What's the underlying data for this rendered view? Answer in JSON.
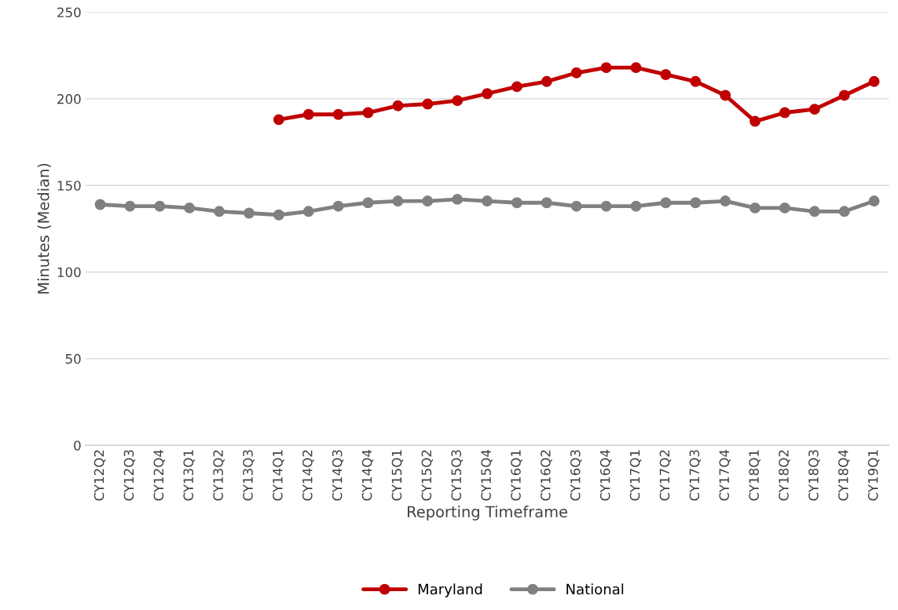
{
  "chart_data": {
    "type": "line",
    "xlabel": "Reporting Timeframe",
    "ylabel": "Minutes (Median)",
    "categories": [
      "CY12Q2",
      "CY12Q3",
      "CY12Q4",
      "CY13Q1",
      "CY13Q2",
      "CY13Q3",
      "CY14Q1",
      "CY14Q2",
      "CY14Q3",
      "CY14Q4",
      "CY15Q1",
      "CY15Q2",
      "CY15Q3",
      "CY15Q4",
      "CY16Q1",
      "CY16Q2",
      "CY16Q3",
      "CY16Q4",
      "CY17Q1",
      "CY17Q2",
      "CY17Q3",
      "CY17Q4",
      "CY18Q1",
      "CY18Q2",
      "CY18Q3",
      "CY18Q4",
      "CY19Q1"
    ],
    "series": [
      {
        "name": "Maryland",
        "color": "#c00000",
        "values": [
          null,
          null,
          null,
          null,
          null,
          null,
          188,
          191,
          191,
          192,
          196,
          197,
          199,
          203,
          207,
          210,
          215,
          218,
          218,
          214,
          210,
          202,
          187,
          192,
          194,
          202,
          210
        ]
      },
      {
        "name": "National",
        "color": "#808080",
        "values": [
          139,
          138,
          138,
          137,
          135,
          134,
          133,
          135,
          138,
          140,
          141,
          141,
          142,
          141,
          140,
          140,
          138,
          138,
          138,
          140,
          140,
          141,
          137,
          137,
          135,
          135,
          141
        ]
      }
    ],
    "ylim": [
      0,
      250
    ],
    "yticks": [
      0,
      50,
      100,
      150,
      200,
      250
    ],
    "grid": "y",
    "legend": "bottom",
    "marker": "circle",
    "line_style": "solid"
  }
}
